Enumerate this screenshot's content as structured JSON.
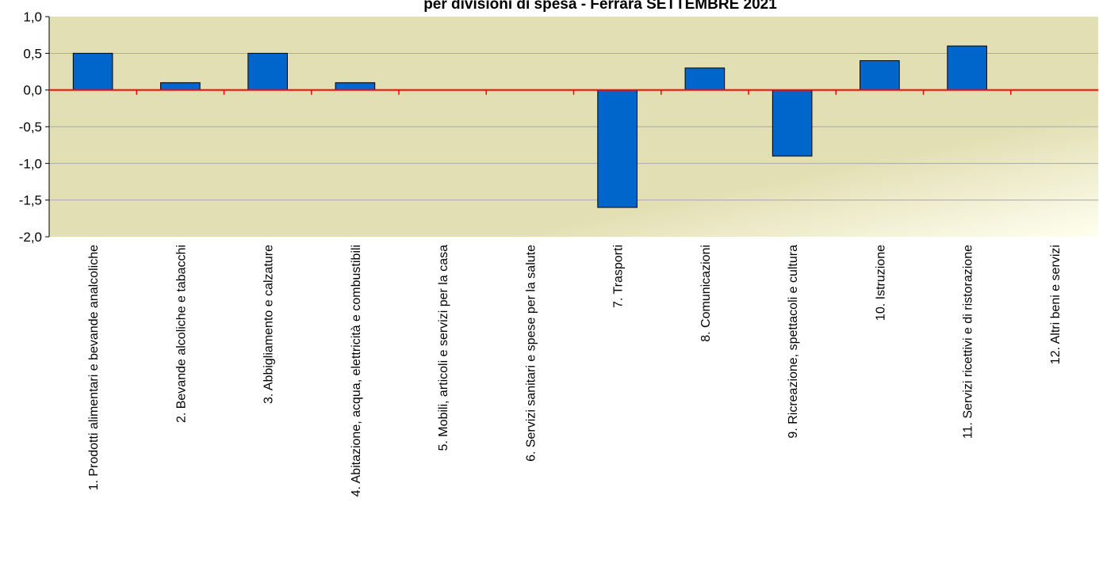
{
  "chart_data": {
    "type": "bar",
    "title": "per divisioni  di spesa - Ferrara SETTEMBRE  2021",
    "categories": [
      "1. Prodotti alimentari e bevande analcoliche",
      "2. Bevande alcoliche e tabacchi",
      "3. Abbigliamento e calzature",
      "4. Abitazione, acqua, elettricità e combustibili",
      "5. Mobili, articoli e servizi per la casa",
      "6. Servizi sanitari e spese per la salute",
      "7. Trasporti",
      "8. Comunicazioni",
      "9. Ricreazione, spettacoli e cultura",
      "10. Istruzione",
      "11. Servizi ricettivi e di ristorazione",
      "12. Altri beni e servizi"
    ],
    "values": [
      0.5,
      0.1,
      0.5,
      0.1,
      0.0,
      0.0,
      -1.6,
      0.3,
      -0.9,
      0.4,
      0.6,
      0.0
    ],
    "ylim": [
      -2.0,
      1.0
    ],
    "yticks": [
      "1,0",
      "0,5",
      "0,0",
      "-0,5",
      "-1,0",
      "-1,5",
      "-2,0"
    ],
    "xlabel": "",
    "ylabel": "",
    "grid": true,
    "colors": {
      "bar_fill": "#0066CC",
      "bar_stroke": "#000000",
      "zero_line": "#FF0000",
      "grid": "#A8A8A8",
      "plot_bg_main": "#E3DFB4",
      "plot_bg_light": "#FFFFF0"
    }
  }
}
